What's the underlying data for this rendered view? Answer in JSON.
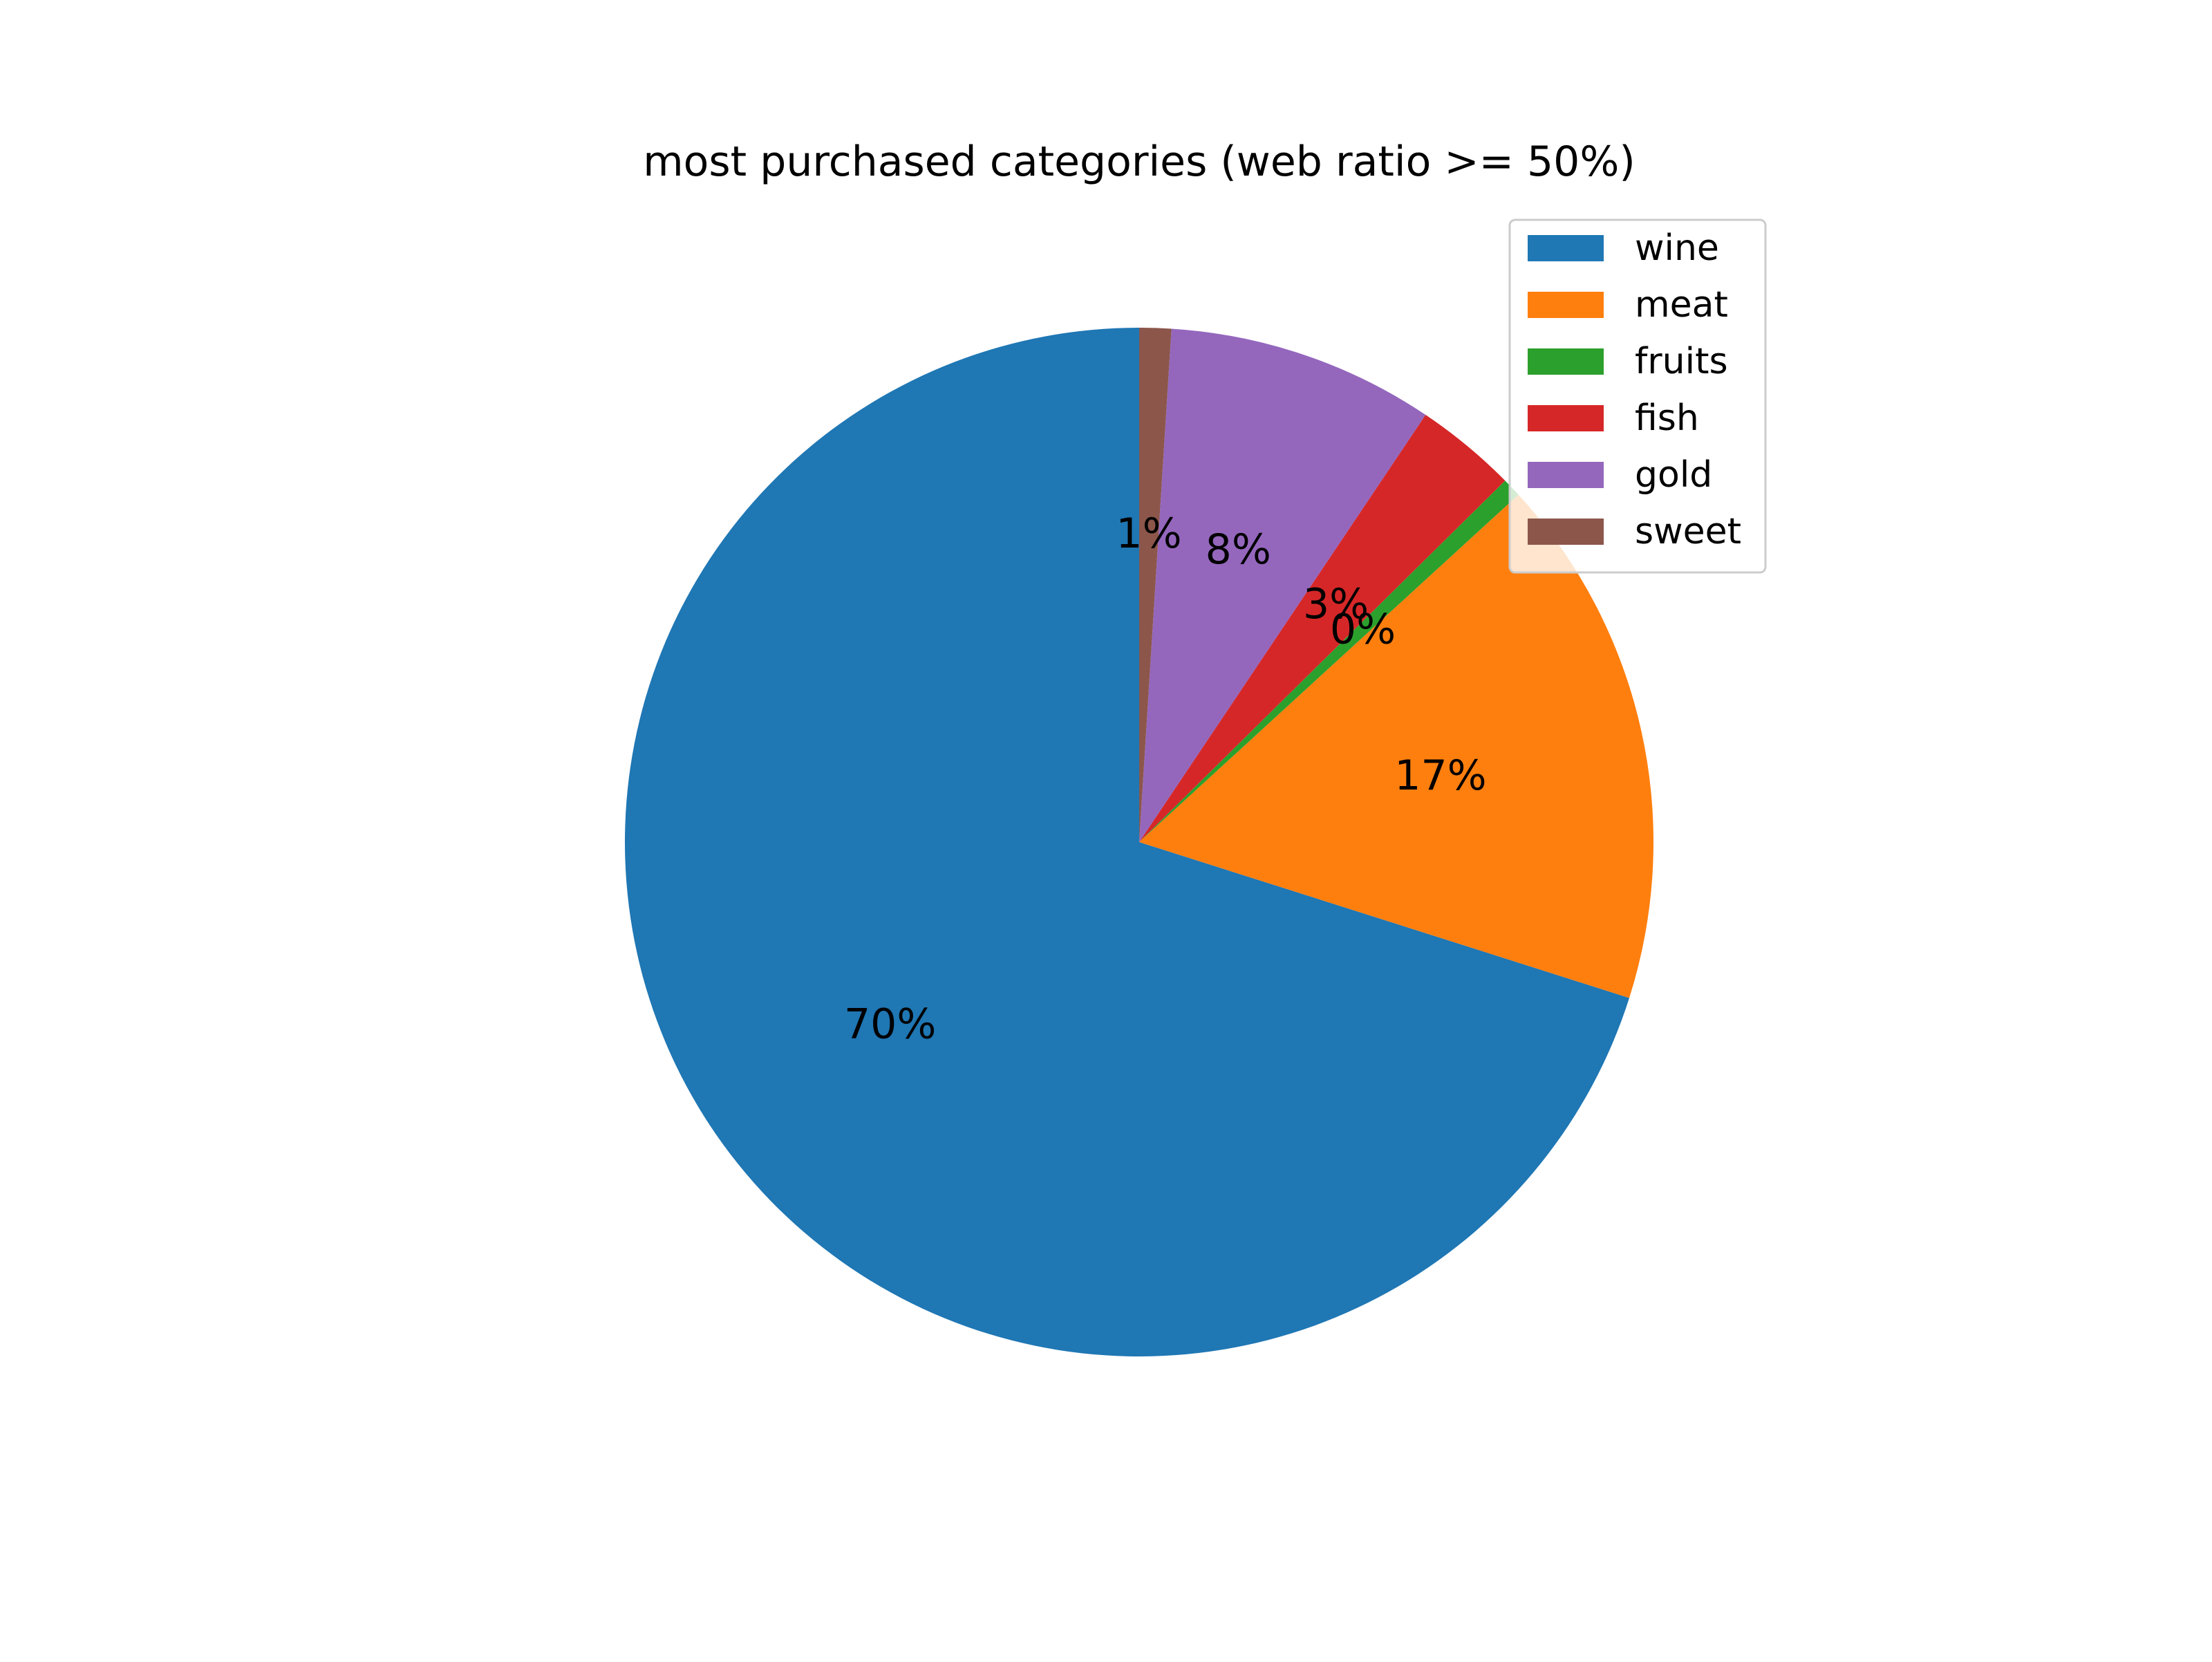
{
  "chart_data": {
    "type": "pie",
    "title": "most purchased categories (web ratio >= 50%)",
    "start_angle_deg": 90,
    "direction": "counterclockwise",
    "legend_placement": "upper-right",
    "slices": [
      {
        "label": "wine",
        "value": 70.1,
        "display": "70%",
        "color": "#1f77b4"
      },
      {
        "label": "meat",
        "value": 16.7,
        "display": "17%",
        "color": "#ff7f0e"
      },
      {
        "label": "fruits",
        "value": 0.6,
        "display": "0%",
        "color": "#2ca02c"
      },
      {
        "label": "fish",
        "value": 3.2,
        "display": "3%",
        "color": "#d62728"
      },
      {
        "label": "gold",
        "value": 8.4,
        "display": "8%",
        "color": "#9467bd"
      },
      {
        "label": "sweet",
        "value": 1.0,
        "display": "1%",
        "color": "#8c564b"
      }
    ]
  }
}
